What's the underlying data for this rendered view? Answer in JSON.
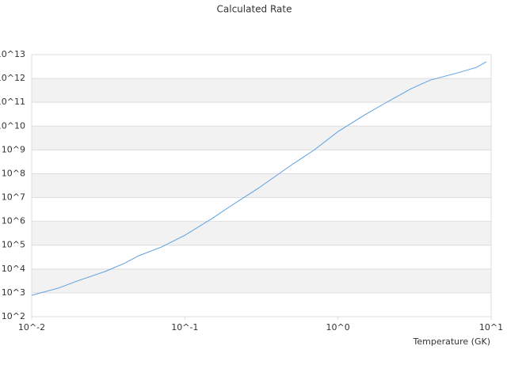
{
  "chart_data": {
    "type": "line",
    "title": "Calculated Rate",
    "x_label": "Temperature (GK)",
    "x": [
      0.01,
      0.015,
      0.02,
      0.03,
      0.04,
      0.05,
      0.07,
      0.1,
      0.15,
      0.2,
      0.3,
      0.5,
      0.7,
      1,
      1.5,
      2,
      3,
      4,
      6,
      8,
      9.3
    ],
    "series": [
      {
        "color": "#5aa0e0",
        "values": [
          790,
          1600,
          3200,
          7800,
          17000,
          36000,
          83000,
          260000,
          1300000,
          4500000,
          24000000,
          240000000,
          1000000000,
          5900000000,
          30000000000,
          87000000000,
          370000000000,
          850000000000,
          1700000000000,
          2900000000000,
          5000000000000
        ]
      }
    ],
    "x_log": true,
    "y_log": true,
    "xlim": [
      0.01,
      10
    ],
    "xticks": [
      {
        "value": 0.01,
        "label": "10^-2"
      },
      {
        "value": 0.1,
        "label": "10^-1"
      },
      {
        "value": 1,
        "label": "10^0"
      },
      {
        "value": 10,
        "label": "10^1"
      }
    ],
    "ylim": [
      100,
      10000000000000
    ],
    "yticks": [
      {
        "value": 100,
        "label": "10^2"
      },
      {
        "value": 1000,
        "label": "10^3"
      },
      {
        "value": 10000,
        "label": "10^4"
      },
      {
        "value": 100000,
        "label": "10^5"
      },
      {
        "value": 1000000,
        "label": "10^6"
      },
      {
        "value": 10000000,
        "label": "10^7"
      },
      {
        "value": 100000000,
        "label": "10^8"
      },
      {
        "value": 1000000000,
        "label": "10^9"
      },
      {
        "value": 10000000000,
        "label": "10^10"
      },
      {
        "value": 100000000000,
        "label": "10^11"
      },
      {
        "value": 1000000000000,
        "label": "10^12"
      },
      {
        "value": 10000000000000,
        "label": "10^13"
      }
    ],
    "grid": true,
    "band_color": "#f2f2f2",
    "grid_color": "#dddddd"
  }
}
